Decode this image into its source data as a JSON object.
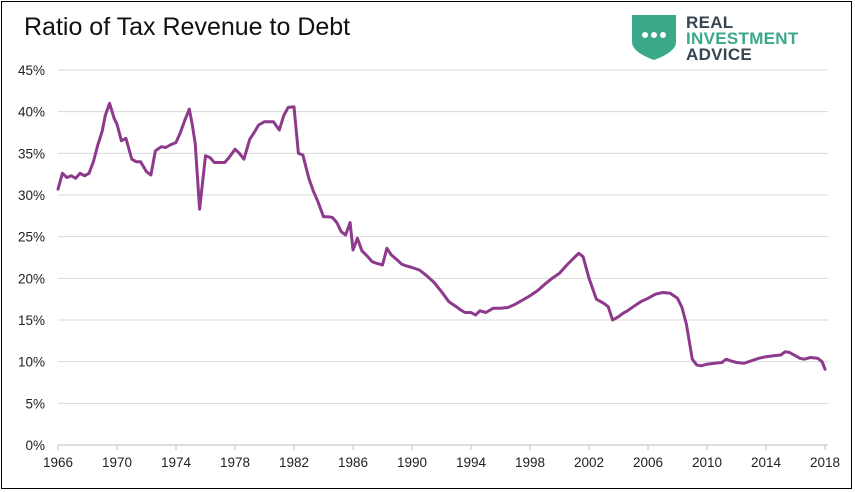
{
  "brand": {
    "line1": "REAL",
    "line2": "INVESTMENT",
    "line3": "ADVICE",
    "shield_color": "#3aa889",
    "text_dark": "#36454f",
    "text_green": "#3aa889"
  },
  "chart_data": {
    "type": "line",
    "title": "Ratio of Tax Revenue to Debt",
    "xlabel": "",
    "ylabel": "",
    "xlim": [
      1966,
      2018.2
    ],
    "ylim": [
      0,
      45
    ],
    "x_ticks": [
      "1966",
      "1970",
      "1974",
      "1978",
      "1982",
      "1986",
      "1990",
      "1994",
      "1998",
      "2002",
      "2006",
      "2010",
      "2014",
      "2018"
    ],
    "y_ticks": [
      "0%",
      "5%",
      "10%",
      "15%",
      "20%",
      "25%",
      "30%",
      "35%",
      "40%",
      "45%"
    ],
    "grid": "horizontal",
    "series": [
      {
        "color": "#8e3a8c",
        "x": [
          1966.0,
          1966.3,
          1966.6,
          1966.9,
          1967.2,
          1967.5,
          1967.8,
          1968.1,
          1968.4,
          1968.7,
          1969.0,
          1969.2,
          1969.5,
          1969.8,
          1970.0,
          1970.3,
          1970.6,
          1971.0,
          1971.3,
          1971.6,
          1972.0,
          1972.3,
          1972.6,
          1973.0,
          1973.3,
          1973.6,
          1974.0,
          1974.3,
          1974.6,
          1974.9,
          1975.1,
          1975.3,
          1975.6,
          1976.0,
          1976.3,
          1976.6,
          1977.0,
          1977.3,
          1977.6,
          1978.0,
          1978.3,
          1978.6,
          1979.0,
          1979.3,
          1979.6,
          1980.0,
          1980.3,
          1980.6,
          1981.0,
          1981.3,
          1981.6,
          1982.0,
          1982.3,
          1982.6,
          1983.0,
          1983.3,
          1983.6,
          1984.0,
          1984.3,
          1984.6,
          1984.9,
          1985.2,
          1985.5,
          1985.8,
          1986.0,
          1986.3,
          1986.6,
          1987.0,
          1987.3,
          1987.6,
          1988.0,
          1988.3,
          1988.6,
          1989.0,
          1989.3,
          1989.6,
          1990.0,
          1990.5,
          1991.0,
          1991.5,
          1992.0,
          1992.5,
          1993.0,
          1993.3,
          1993.6,
          1994.0,
          1994.3,
          1994.6,
          1995.0,
          1995.5,
          1996.0,
          1996.5,
          1997.0,
          1997.5,
          1998.0,
          1998.5,
          1999.0,
          1999.5,
          2000.0,
          2000.5,
          2001.0,
          2001.3,
          2001.6,
          2002.0,
          2002.5,
          2003.0,
          2003.3,
          2003.6,
          2004.0,
          2004.3,
          2004.6,
          2005.0,
          2005.5,
          2006.0,
          2006.5,
          2007.0,
          2007.5,
          2008.0,
          2008.3,
          2008.6,
          2009.0,
          2009.3,
          2009.6,
          2010.0,
          2010.5,
          2011.0,
          2011.3,
          2011.6,
          2012.0,
          2012.5,
          2013.0,
          2013.5,
          2014.0,
          2014.5,
          2015.0,
          2015.3,
          2015.6,
          2016.0,
          2016.3,
          2016.6,
          2017.0,
          2017.5,
          2017.8,
          2018.0
        ],
        "values": [
          30.7,
          32.6,
          32.1,
          32.3,
          32.0,
          32.6,
          32.3,
          32.6,
          34.0,
          36.0,
          37.7,
          39.5,
          41.0,
          39.2,
          38.5,
          36.5,
          36.8,
          34.3,
          34.0,
          34.0,
          32.8,
          32.4,
          35.3,
          35.8,
          35.7,
          36.0,
          36.3,
          37.5,
          39.0,
          40.3,
          38.5,
          36.2,
          28.3,
          34.7,
          34.5,
          33.9,
          33.9,
          33.9,
          34.5,
          35.5,
          35.0,
          34.3,
          36.7,
          37.5,
          38.4,
          38.8,
          38.8,
          38.8,
          37.8,
          39.5,
          40.5,
          40.6,
          35.0,
          34.8,
          32.0,
          30.5,
          29.3,
          27.4,
          27.4,
          27.3,
          26.7,
          25.6,
          25.2,
          26.7,
          23.4,
          24.8,
          23.3,
          22.6,
          22.0,
          21.8,
          21.6,
          23.6,
          22.8,
          22.2,
          21.7,
          21.5,
          21.3,
          21.0,
          20.3,
          19.5,
          18.4,
          17.2,
          16.6,
          16.2,
          15.9,
          15.9,
          15.6,
          16.1,
          15.9,
          16.4,
          16.4,
          16.5,
          16.9,
          17.4,
          17.9,
          18.5,
          19.3,
          20.0,
          20.6,
          21.6,
          22.5,
          23.0,
          22.6,
          20.0,
          17.5,
          17.0,
          16.6,
          15.0,
          15.4,
          15.8,
          16.1,
          16.6,
          17.2,
          17.6,
          18.1,
          18.3,
          18.2,
          17.6,
          16.5,
          14.5,
          10.3,
          9.6,
          9.5,
          9.7,
          9.8,
          9.9,
          10.3,
          10.1,
          9.9,
          9.8,
          10.1,
          10.4,
          10.6,
          10.7,
          10.8,
          11.2,
          11.1,
          10.7,
          10.4,
          10.3,
          10.5,
          10.4,
          10.0,
          9.1
        ]
      }
    ]
  }
}
